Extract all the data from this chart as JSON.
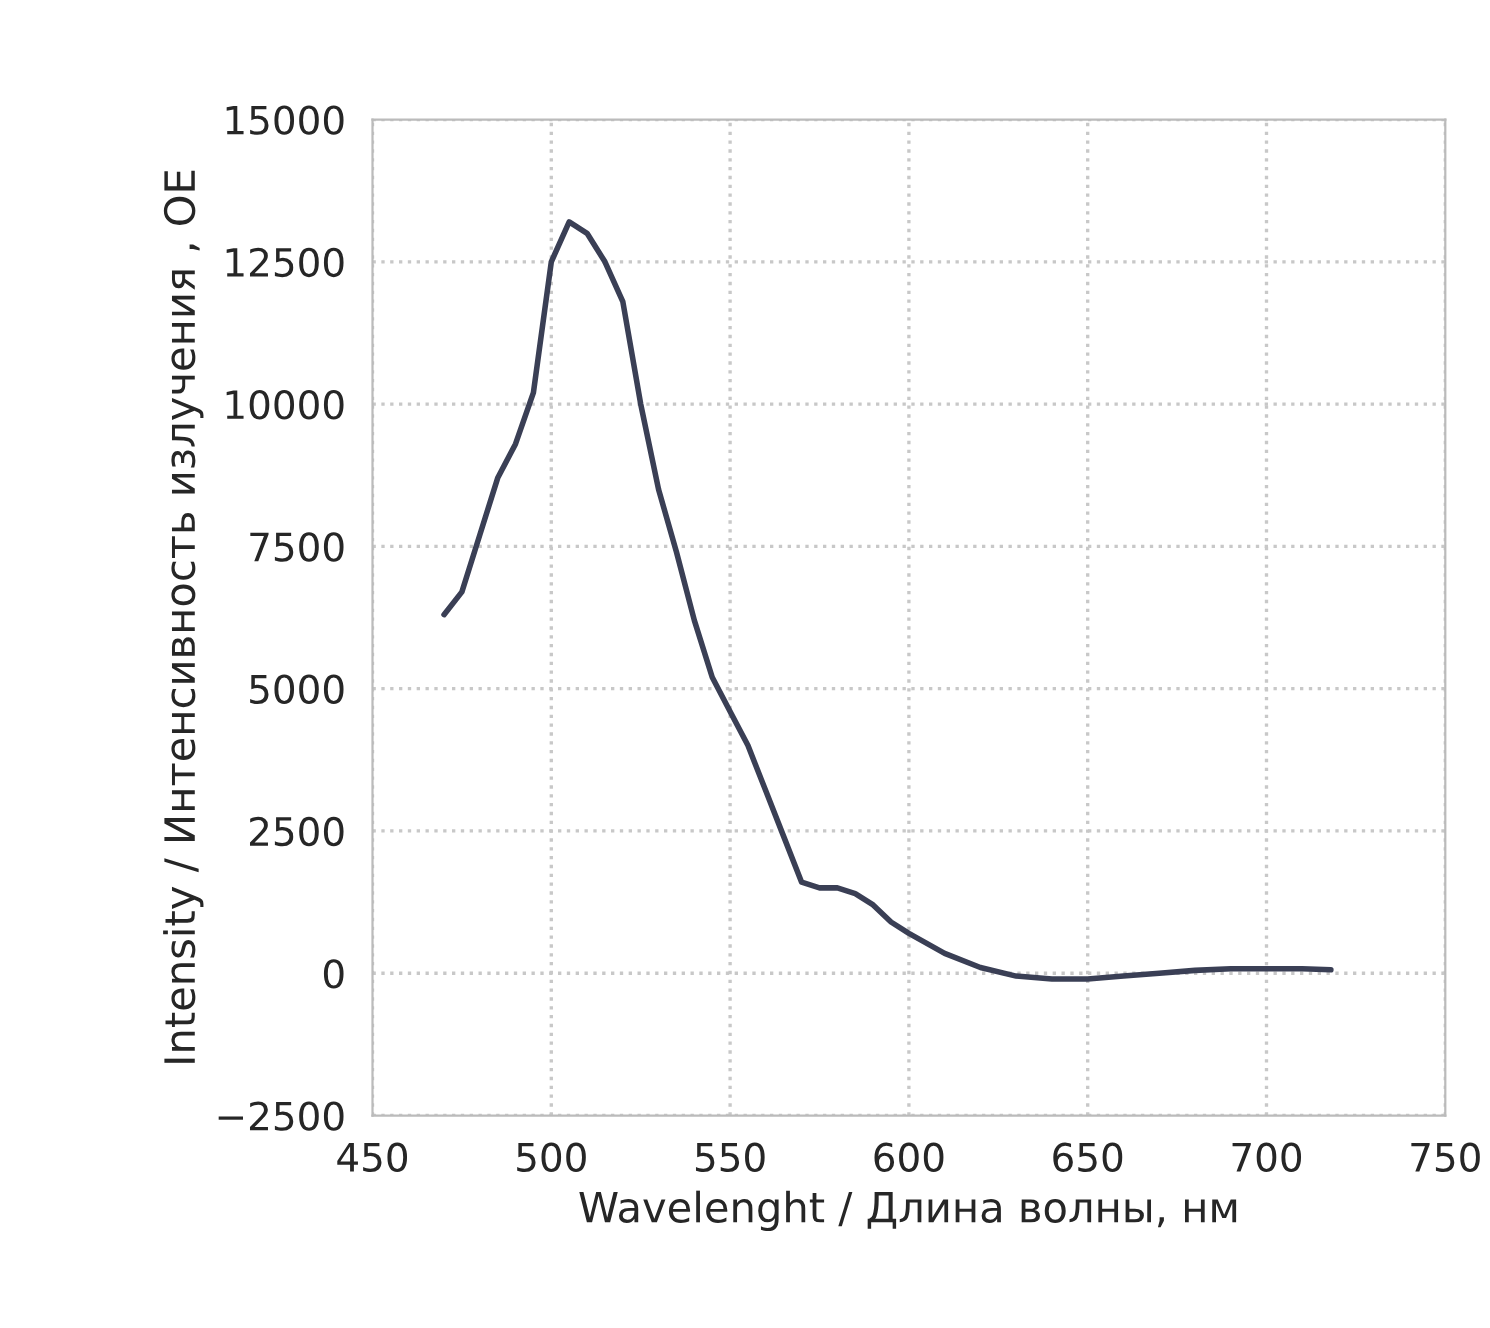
{
  "chart_data": {
    "type": "line",
    "xlabel": "Wavelenght / Длина волны, нм",
    "ylabel": "Intensity / Интенсивность излучения , OE",
    "xlim": [
      450,
      750
    ],
    "xticks": [
      450,
      500,
      550,
      600,
      650,
      700,
      750
    ],
    "ylim": [
      -2500,
      15000
    ],
    "yticks": [
      {
        "value": -2500,
        "label": "−2500"
      },
      0,
      2500,
      5000,
      7500,
      10000,
      12500,
      15000
    ],
    "grid": true,
    "marker": "none",
    "line_style": "solid",
    "x": [
      470,
      475,
      480,
      485,
      490,
      495,
      500,
      505,
      510,
      515,
      520,
      525,
      530,
      535,
      540,
      545,
      550,
      555,
      560,
      565,
      570,
      575,
      580,
      585,
      590,
      595,
      600,
      610,
      620,
      630,
      640,
      650,
      660,
      670,
      680,
      690,
      700,
      710,
      718
    ],
    "series": [
      {
        "color": "#3a3f55",
        "values": [
          6300,
          6700,
          7700,
          8700,
          9300,
          10200,
          12500,
          13200,
          13000,
          12500,
          11800,
          10000,
          8500,
          7400,
          6200,
          5200,
          4600,
          4000,
          3200,
          2400,
          1600,
          1500,
          1500,
          1400,
          1200,
          900,
          700,
          350,
          100,
          -50,
          -100,
          -100,
          -50,
          0,
          50,
          80,
          80,
          80,
          60
        ]
      }
    ]
  }
}
